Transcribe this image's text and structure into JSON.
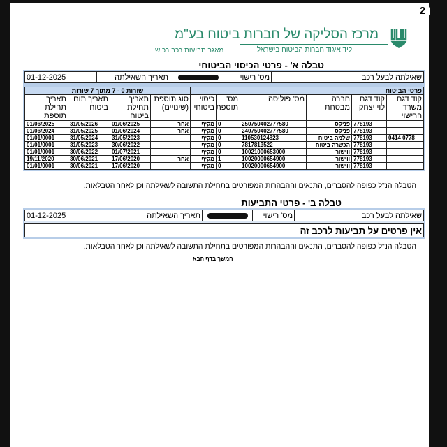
{
  "page_number": "2",
  "header": {
    "org_title": "מרכז הסליקה של חברות ביטוח בע\"מ",
    "org_subtitle": "ליד איגוד חברות הביטוח בישראל",
    "repository": "מאגר תביעות רכב רכוש",
    "logo_icon": "insurance-center-logo"
  },
  "table_a": {
    "title": "טבלה א' - פרטי הכיסוי הביטוחי",
    "query_label": "שאילתה לבעל רכב",
    "license_label": "מס' רישוי",
    "query_date_label": "תאריך השאילתה",
    "query_date": "01-12-2025",
    "section_title": "פרטי הביטוח",
    "rows_info": "שורות 0 - 7 מתוך 7 שורות",
    "columns": [
      "קוד דגם משרד הרישוי",
      "קוד דגם לוי יצחק",
      "חברה מבטחת",
      "מס' פוליסה",
      "מס' תוספת",
      "כיסוי ביטוחי",
      "סוג תוספת (שינויים)",
      "תאריך תחילת ביטוח",
      "תאריך תום ביטוח",
      "תאריך תחילת תוספת",
      "תאריך תום תוספת"
    ],
    "rows": [
      [
        "",
        "778193",
        "פניקס",
        "250750402777580",
        "0",
        "מקיף",
        "אחר",
        "01/06/2025",
        "31/05/2026",
        "01/06/2025",
        "31/05/2026"
      ],
      [
        "",
        "778193",
        "פניקס",
        "240750402777580",
        "0",
        "מקיף",
        "אחר",
        "01/06/2024",
        "31/05/2025",
        "01/06/2024",
        "31/05/2025"
      ],
      [
        "0778 0414",
        "778193",
        "שלמה ביטוח",
        "110530124823",
        "0",
        "מקיף",
        "",
        "31/05/2023",
        "31/05/2024",
        "01/01/0001",
        "01/01/0001"
      ],
      [
        "",
        "778193",
        "הכשרה ביטוח",
        "7817813522",
        "0",
        "מקיף",
        "",
        "30/06/2022",
        "31/05/2023",
        "01/01/0001",
        "01/01/0001"
      ],
      [
        "",
        "778193",
        "ווישור",
        "10021000653000",
        "0",
        "מקיף",
        "",
        "01/07/2021",
        "30/06/2022",
        "01/01/0001",
        "01/01/0001"
      ],
      [
        "",
        "778193",
        "ווישור",
        "10020000654900",
        "1",
        "מקיף",
        "אחר",
        "17/06/2020",
        "30/06/2021",
        "19/11/2020",
        "30/06/2021"
      ],
      [
        "",
        "778193",
        "ווישור",
        "10020000654900",
        "0",
        "מקיף",
        "",
        "17/06/2020",
        "30/06/2021",
        "01/01/0001",
        "01/01/0001"
      ]
    ],
    "note": "הטבלה הנ\"ל כפופה להסברים, התנאים וההבהרות המפורטים בתחילת התשובה לשאילתה וכן לאחר הטבלאות."
  },
  "table_b": {
    "title": "טבלה ב' - פרטי התביעות",
    "query_label": "שאילתה לבעל רכב",
    "license_label": "מס' רישוי",
    "query_date_label": "תאריך השאילתה",
    "query_date": "01-12-2025",
    "no_claims": "אין פרטים על תביעות לרכב זה",
    "note": "הטבלה הנ\"ל כפופה להסברים, התנאים וההבהרות המפורטים בתחילת התשובה לשאילתה וכן לאחר הטבלאות."
  },
  "continued": "המשך בדף הבא",
  "colors": {
    "brand": "#2a8a6b",
    "table_border": "#b7cde8",
    "section_bg": "#c6d9f1"
  }
}
